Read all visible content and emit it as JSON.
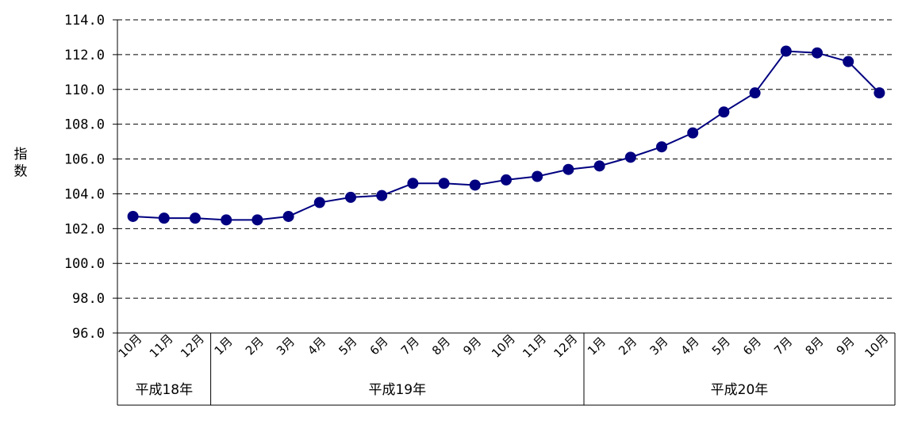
{
  "chart_data": {
    "type": "line",
    "title": "",
    "xlabel": "",
    "ylabel": "指数",
    "ylim": [
      96.0,
      114.0
    ],
    "ytick_step": 2.0,
    "ytick_labels": [
      "96.0",
      "98.0",
      "100.0",
      "102.0",
      "104.0",
      "106.0",
      "108.0",
      "110.0",
      "112.0",
      "114.0"
    ],
    "grid": "horizontal-dashed",
    "legend": "none",
    "line_color": "#000080",
    "marker": "circle",
    "categories": [
      "10月",
      "11月",
      "12月",
      "1月",
      "2月",
      "3月",
      "4月",
      "5月",
      "6月",
      "7月",
      "8月",
      "9月",
      "10月",
      "11月",
      "12月",
      "1月",
      "2月",
      "3月",
      "4月",
      "5月",
      "6月",
      "7月",
      "8月",
      "9月",
      "10月"
    ],
    "values": [
      102.7,
      102.6,
      102.6,
      102.5,
      102.5,
      102.7,
      103.5,
      103.8,
      103.9,
      104.6,
      104.6,
      104.5,
      104.8,
      105.0,
      105.4,
      105.6,
      106.1,
      106.7,
      107.5,
      108.7,
      109.8,
      112.2,
      112.1,
      111.6,
      109.8
    ],
    "groups": [
      {
        "label": "平成18年",
        "count": 3
      },
      {
        "label": "平成19年",
        "count": 12
      },
      {
        "label": "平成20年",
        "count": 10
      }
    ]
  }
}
